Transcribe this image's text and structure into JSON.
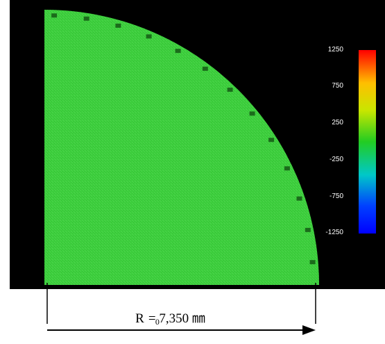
{
  "figure": {
    "background": "#000000",
    "quarter_disc_color": "#3ccf3c",
    "quarter_disc_dark": "#1f8f1f"
  },
  "colorbar": {
    "ticks": [
      "1250",
      "750",
      "250",
      "-250",
      "-750",
      "-1250"
    ],
    "colors": [
      "#ff0000",
      "#ffbf00",
      "#c8e600",
      "#22cc22",
      "#00c8c8",
      "#0040ff",
      "#0000ff"
    ]
  },
  "dimension": {
    "symbol": "R",
    "subscript": "0",
    "value_text": " = 7,350 ㎜"
  }
}
